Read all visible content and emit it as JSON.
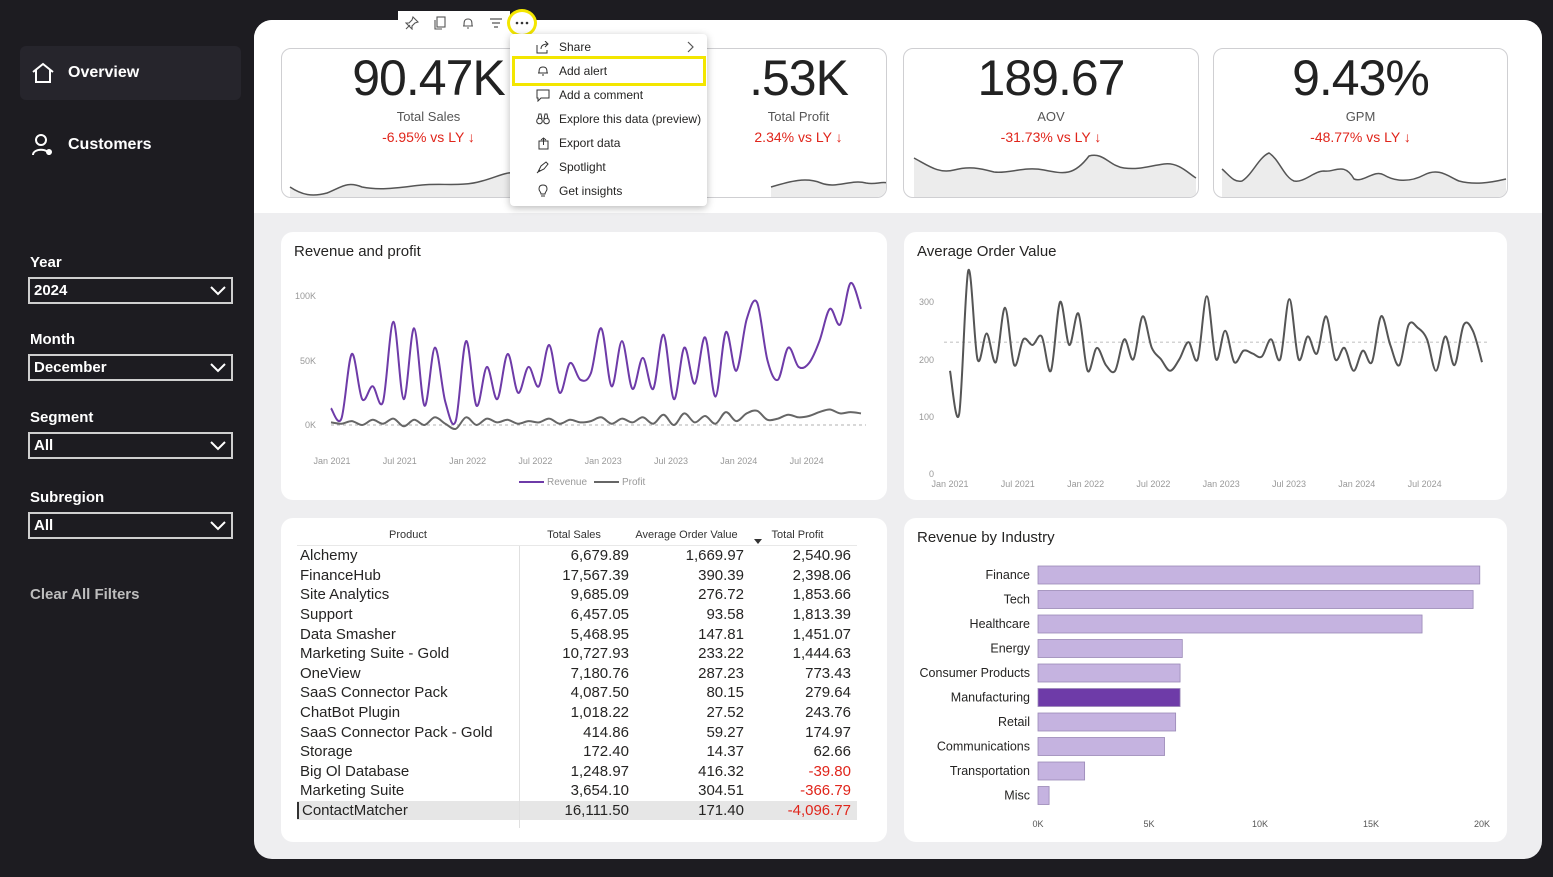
{
  "nav": {
    "overview": "Overview",
    "customers": "Customers"
  },
  "filters": {
    "year": {
      "label": "Year",
      "value": "2024"
    },
    "month": {
      "label": "Month",
      "value": "December"
    },
    "segment": {
      "label": "Segment",
      "value": "All"
    },
    "subregion": {
      "label": "Subregion",
      "value": "All"
    },
    "clear": "Clear All Filters"
  },
  "kpis": [
    {
      "value": "90.47K",
      "label": "Total Sales",
      "delta": "-6.95% vs LY ↓"
    },
    {
      "value": ".53K",
      "label": "Total Profit",
      "delta": "2.34% vs LY ↓"
    },
    {
      "value": "189.67",
      "label": "AOV",
      "delta": "-31.73% vs LY ↓"
    },
    {
      "value": "9.43%",
      "label": "GPM",
      "delta": "-48.77% vs LY ↓"
    }
  ],
  "menu": {
    "items": [
      "Share",
      "Add alert",
      "Add a comment",
      "Explore this data (preview)",
      "Export data",
      "Spotlight",
      "Get insights"
    ]
  },
  "colors": {
    "revenue": "#6e3ba8",
    "profit": "#666666",
    "bar": "#c5b3e0",
    "bar_selected": "#6e3ba8",
    "negative": "#e0251b",
    "highlight": "#f3e600"
  },
  "table": {
    "headers": [
      "Product",
      "Total Sales",
      "Average Order Value",
      "Total Profit"
    ],
    "rows": [
      [
        "Alchemy",
        "6,679.89",
        "1,669.97",
        "2,540.96"
      ],
      [
        "FinanceHub",
        "17,567.39",
        "390.39",
        "2,398.06"
      ],
      [
        "Site Analytics",
        "9,685.09",
        "276.72",
        "1,853.66"
      ],
      [
        "Support",
        "6,457.05",
        "93.58",
        "1,813.39"
      ],
      [
        "Data Smasher",
        "5,468.95",
        "147.81",
        "1,451.07"
      ],
      [
        "Marketing Suite - Gold",
        "10,727.93",
        "233.22",
        "1,444.63"
      ],
      [
        "OneView",
        "7,180.76",
        "287.23",
        "773.43"
      ],
      [
        "SaaS Connector Pack",
        "4,087.50",
        "80.15",
        "279.64"
      ],
      [
        "ChatBot Plugin",
        "1,018.22",
        "27.52",
        "243.76"
      ],
      [
        "SaaS Connector Pack - Gold",
        "414.86",
        "59.27",
        "174.97"
      ],
      [
        "Storage",
        "172.40",
        "14.37",
        "62.66"
      ],
      [
        "Big Ol Database",
        "1,248.97",
        "416.32",
        "-39.80"
      ],
      [
        "Marketing Suite",
        "3,654.10",
        "304.51",
        "-366.79"
      ],
      [
        "ContactMatcher",
        "16,111.50",
        "171.40",
        "-4,096.77"
      ]
    ]
  },
  "chart_data": [
    {
      "type": "line",
      "title": "Revenue and profit",
      "x_ticks": [
        "Jan 2021",
        "Jul 2021",
        "Jan 2022",
        "Jul 2022",
        "Jan 2023",
        "Jul 2023",
        "Jan 2024",
        "Jul 2024"
      ],
      "y_ticks": [
        "100K",
        "50K",
        "0K"
      ],
      "ylim": [
        -5000,
        110000
      ],
      "series": [
        {
          "name": "Revenue",
          "color": "#6e3ba8",
          "values": [
            13000,
            5000,
            55000,
            20000,
            30000,
            18000,
            80000,
            20000,
            75000,
            15000,
            60000,
            18000,
            3000,
            65000,
            15000,
            45000,
            20000,
            55000,
            25000,
            45000,
            30000,
            62000,
            25000,
            48000,
            35000,
            40000,
            75000,
            30000,
            65000,
            28000,
            52000,
            28000,
            70000,
            20000,
            60000,
            32000,
            68000,
            22000,
            72000,
            42000,
            82000,
            95000,
            50000,
            35000,
            60000,
            45000,
            48000,
            65000,
            90000,
            78000,
            110000,
            90000
          ]
        },
        {
          "name": "Profit",
          "color": "#666666",
          "values": [
            2000,
            1000,
            3000,
            0,
            4000,
            1000,
            5000,
            -1000,
            4000,
            0,
            6000,
            1000,
            -3000,
            6000,
            0,
            5000,
            2000,
            4000,
            1000,
            3000,
            2000,
            5000,
            1000,
            4000,
            2000,
            3000,
            6000,
            1000,
            5000,
            2000,
            6000,
            1000,
            8000,
            0,
            9000,
            2000,
            7000,
            1000,
            10000,
            3000,
            9000,
            11000,
            4000,
            5000,
            8000,
            6000,
            7000,
            10000,
            12000,
            9000,
            10000,
            9000
          ]
        }
      ],
      "legend": [
        "Revenue",
        "Profit"
      ]
    },
    {
      "type": "line",
      "title": "Average Order Value",
      "x_ticks": [
        "Jan 2021",
        "Jul 2021",
        "Jan 2022",
        "Jul 2022",
        "Jan 2023",
        "Jul 2023",
        "Jan 2024",
        "Jul 2024"
      ],
      "y_ticks": [
        "300",
        "200",
        "100",
        "0"
      ],
      "ylim": [
        0,
        330
      ],
      "reference_line": 230,
      "series": [
        {
          "name": "AOV",
          "color": "#555555",
          "values": [
            180,
            105,
            355,
            200,
            245,
            195,
            290,
            190,
            235,
            225,
            240,
            180,
            300,
            225,
            280,
            180,
            220,
            190,
            180,
            235,
            200,
            275,
            220,
            200,
            180,
            200,
            230,
            200,
            310,
            200,
            250,
            195,
            215,
            210,
            205,
            235,
            200,
            305,
            200,
            240,
            210,
            275,
            200,
            220,
            180,
            215,
            195,
            275,
            225,
            190,
            260,
            255,
            235,
            180,
            240,
            190,
            260,
            250,
            195
          ]
        }
      ]
    },
    {
      "type": "bar",
      "orientation": "horizontal",
      "title": "Revenue by Industry",
      "categories": [
        "Finance",
        "Tech",
        "Healthcare",
        "Energy",
        "Consumer Products",
        "Manufacturing",
        "Retail",
        "Communications",
        "Transportation",
        "Misc"
      ],
      "values": [
        19900,
        19600,
        17300,
        6500,
        6400,
        6400,
        6200,
        5700,
        2100,
        500
      ],
      "selected": "Manufacturing",
      "x_ticks": [
        "0K",
        "5K",
        "10K",
        "15K",
        "20K"
      ],
      "xlim": [
        0,
        20000
      ]
    }
  ]
}
